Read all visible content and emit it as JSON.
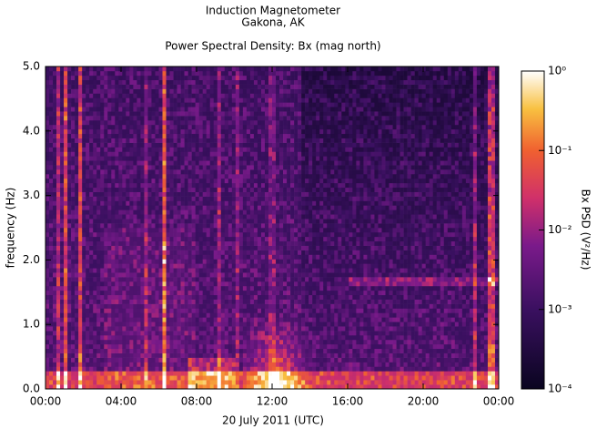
{
  "chart_data": {
    "type": "spectrogram",
    "title": "Induction Magnetometer",
    "subtitle": "Gakona, AK",
    "plot_title": "Power Spectral Density: Bx (mag north)",
    "x_label": "20 July 2011 (UTC)",
    "y_label": "frequency (Hz)",
    "colorbar_label": "Bx PSD (V²/Hz)",
    "xlim": [
      0,
      24
    ],
    "xticks": [
      {
        "value": 0,
        "label": "00:00"
      },
      {
        "value": 4,
        "label": "04:00"
      },
      {
        "value": 8,
        "label": "08:00"
      },
      {
        "value": 12,
        "label": "12:00"
      },
      {
        "value": 16,
        "label": "16:00"
      },
      {
        "value": 20,
        "label": "20:00"
      },
      {
        "value": 24,
        "label": "00:00"
      }
    ],
    "ylim": [
      0,
      5
    ],
    "yticks": [
      {
        "value": 0,
        "label": "0.0"
      },
      {
        "value": 1,
        "label": "1.0"
      },
      {
        "value": 2,
        "label": "2.0"
      },
      {
        "value": 3,
        "label": "3.0"
      },
      {
        "value": 4,
        "label": "4.0"
      },
      {
        "value": 5,
        "label": "5.0"
      }
    ],
    "clim": [
      0.0001,
      1
    ],
    "color_scale": "log",
    "cticks": [
      {
        "value": 1,
        "label": "10⁰"
      },
      {
        "value": 0.1,
        "label": "10⁻¹"
      },
      {
        "value": 0.01,
        "label": "10⁻²"
      },
      {
        "value": 0.001,
        "label": "10⁻³"
      },
      {
        "value": 0.0001,
        "label": "10⁻⁴"
      }
    ]
  }
}
